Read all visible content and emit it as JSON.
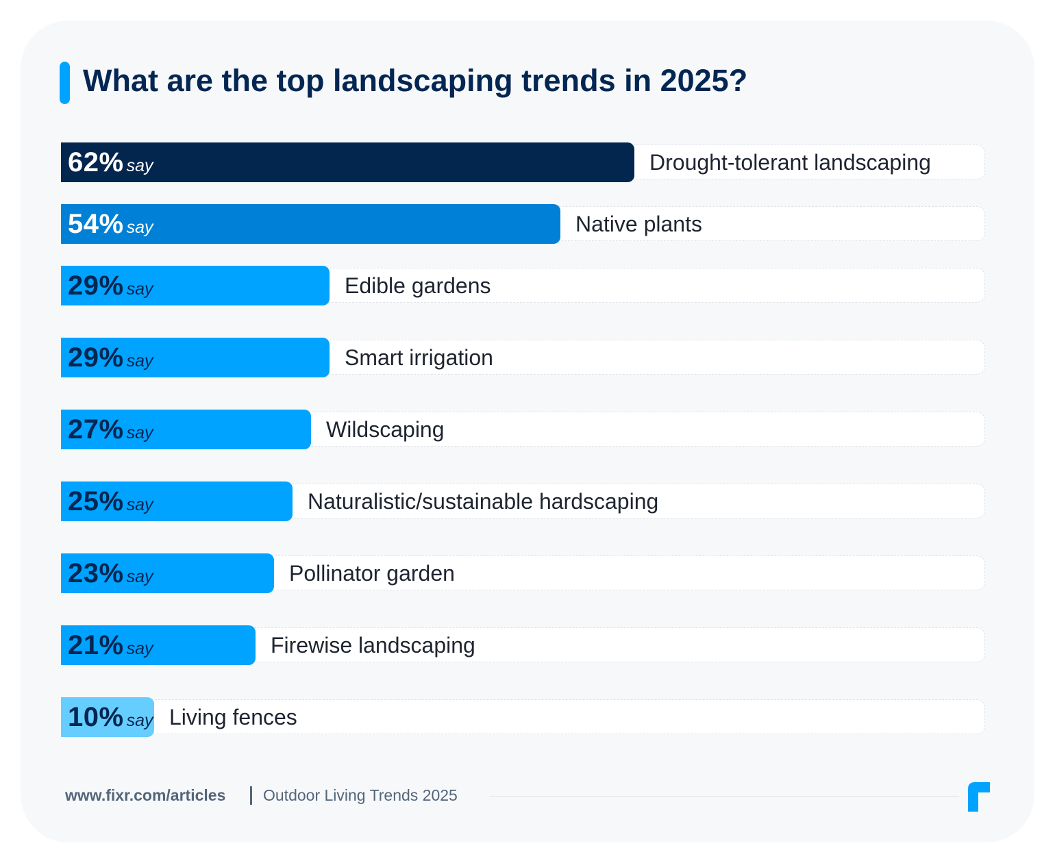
{
  "title": "What are the top landscaping trends in 2025?",
  "chart_data": {
    "type": "bar",
    "orientation": "horizontal",
    "title": "What are the top landscaping trends in 2025?",
    "value_suffix": "%",
    "value_note": "say",
    "xlim": [
      0,
      100
    ],
    "categories": [
      "Drought-tolerant landscaping",
      "Native plants",
      "Edible gardens",
      "Smart irrigation",
      "Wildscaping",
      "Naturalistic/sustainable hardscaping",
      "Pollinator garden",
      "Firewise landscaping",
      "Living fences"
    ],
    "values": [
      62,
      54,
      29,
      29,
      27,
      25,
      23,
      21,
      10
    ],
    "bar_colors": [
      "#03264f",
      "#0080d6",
      "#00a3ff",
      "#00a3ff",
      "#00a3ff",
      "#00a3ff",
      "#00a3ff",
      "#00a3ff",
      "#66cdff"
    ],
    "value_text_colors": [
      "#ffffff",
      "#ffffff",
      "#032652",
      "#032652",
      "#032652",
      "#032652",
      "#032652",
      "#032652",
      "#032652"
    ]
  },
  "footer": {
    "url": "www.fixr.com/articles",
    "separator": "|",
    "source": "Outdoor Living Trends 2025",
    "logo_icon": "fixr-logo-icon"
  },
  "colors": {
    "title": "#032652",
    "accent": "#00a3ff",
    "footer_text": "#53657a"
  }
}
